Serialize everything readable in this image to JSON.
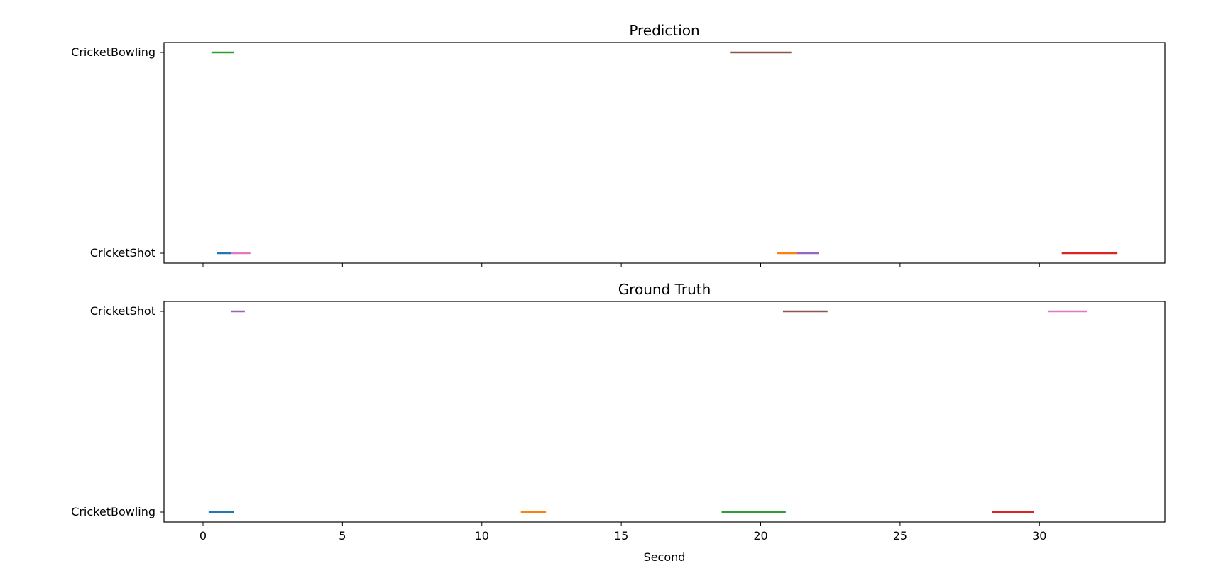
{
  "chart_data": [
    {
      "type": "timeline",
      "title": "Prediction",
      "xlabel": "",
      "categories": [
        "CricketShot",
        "CricketBowling"
      ],
      "xlim": [
        -1.4,
        34.5
      ],
      "xticks": [
        0,
        5,
        10,
        15,
        20,
        25,
        30
      ],
      "xtick_labels_visible": false,
      "segments": [
        {
          "category": "CricketShot",
          "start": 0.5,
          "end": 1.0,
          "color": "#1f77b4"
        },
        {
          "category": "CricketShot",
          "start": 20.6,
          "end": 21.3,
          "color": "#ff7f0e"
        },
        {
          "category": "CricketBowling",
          "start": 0.3,
          "end": 1.1,
          "color": "#2ca02c"
        },
        {
          "category": "CricketShot",
          "start": 30.8,
          "end": 32.8,
          "color": "#d62728"
        },
        {
          "category": "CricketShot",
          "start": 21.3,
          "end": 22.1,
          "color": "#9467bd"
        },
        {
          "category": "CricketBowling",
          "start": 18.9,
          "end": 21.1,
          "color": "#8c564b"
        },
        {
          "category": "CricketShot",
          "start": 1.0,
          "end": 1.7,
          "color": "#e377c2"
        }
      ]
    },
    {
      "type": "timeline",
      "title": "Ground Truth",
      "xlabel": "Second",
      "categories": [
        "CricketBowling",
        "CricketShot"
      ],
      "xlim": [
        -1.4,
        34.5
      ],
      "xticks": [
        0,
        5,
        10,
        15,
        20,
        25,
        30
      ],
      "xtick_labels_visible": true,
      "segments": [
        {
          "category": "CricketBowling",
          "start": 0.2,
          "end": 1.1,
          "color": "#1f77b4"
        },
        {
          "category": "CricketBowling",
          "start": 11.4,
          "end": 12.3,
          "color": "#ff7f0e"
        },
        {
          "category": "CricketBowling",
          "start": 18.6,
          "end": 20.9,
          "color": "#2ca02c"
        },
        {
          "category": "CricketBowling",
          "start": 28.3,
          "end": 29.8,
          "color": "#d62728"
        },
        {
          "category": "CricketShot",
          "start": 1.0,
          "end": 1.5,
          "color": "#9467bd"
        },
        {
          "category": "CricketShot",
          "start": 20.8,
          "end": 22.4,
          "color": "#8c564b"
        },
        {
          "category": "CricketShot",
          "start": 30.3,
          "end": 31.7,
          "color": "#e377c2"
        }
      ]
    }
  ]
}
